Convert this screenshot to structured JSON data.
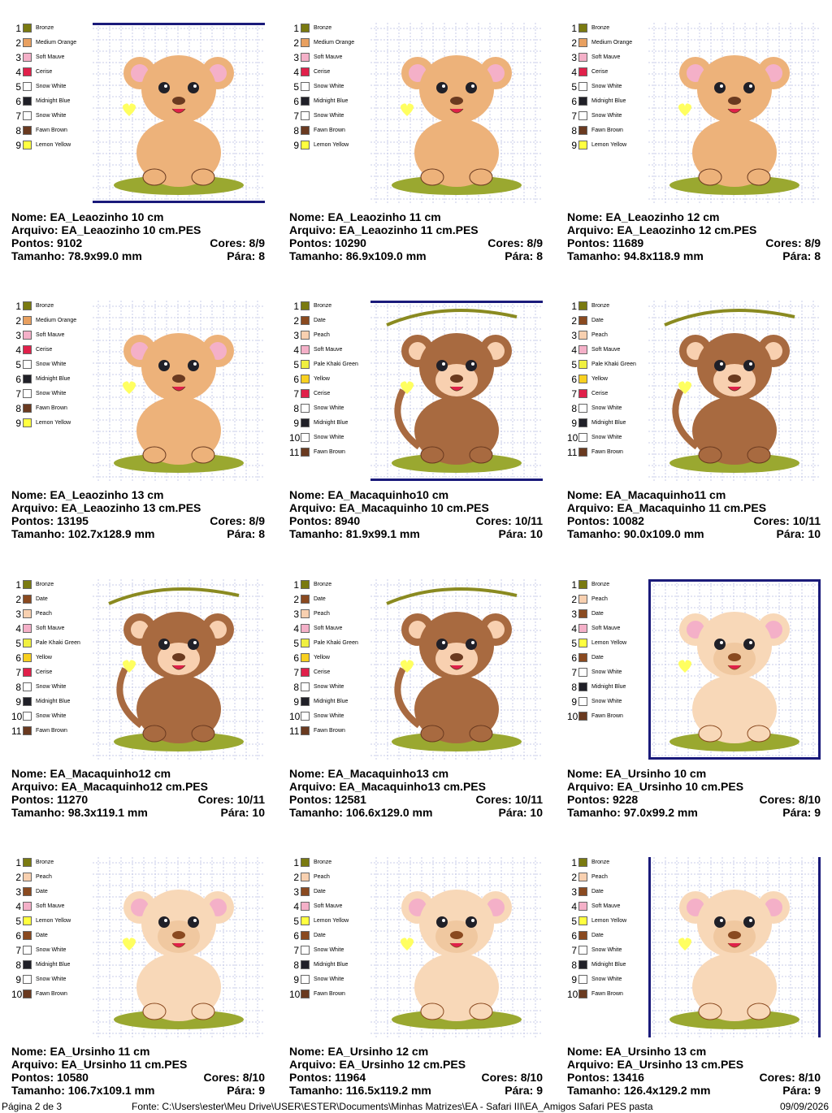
{
  "labels": {
    "nome": "Nome:",
    "arquivo": "Arquivo:",
    "pontos": "Pontos:",
    "cores": "Cores:",
    "tamanho": "Tamanho:",
    "para": "Pára:"
  },
  "cards": [
    {
      "nome": "EA_Leaozinho 10 cm",
      "arquivo": "EA_Leaozinho 10 cm.PES",
      "pontos": 9102,
      "cores": "8/9",
      "tamanho": "78.9x99.0 mm",
      "para": 8,
      "palette": [
        [
          1,
          "Bronze",
          "#7a7a10"
        ],
        [
          2,
          "Medium Orange",
          "#e8a060"
        ],
        [
          3,
          "Soft Mauve",
          "#f4b0c8"
        ],
        [
          4,
          "Cerise",
          "#e0204a"
        ],
        [
          5,
          "Snow White",
          "#ffffff"
        ],
        [
          6,
          "Midnight Blue",
          "#202028"
        ],
        [
          7,
          "Snow White",
          "#ffffff"
        ],
        [
          8,
          "Fawn Brown",
          "#6a3a20"
        ],
        [
          9,
          "Lemon Yellow",
          "#ffff40"
        ]
      ]
    },
    {
      "nome": "EA_Leaozinho 11 cm",
      "arquivo": "EA_Leaozinho 11 cm.PES",
      "pontos": 10290,
      "cores": "8/9",
      "tamanho": "86.9x109.0 mm",
      "para": 8,
      "palette": [
        [
          1,
          "Bronze",
          "#7a7a10"
        ],
        [
          2,
          "Medium Orange",
          "#e8a060"
        ],
        [
          3,
          "Soft Mauve",
          "#f4b0c8"
        ],
        [
          4,
          "Cerise",
          "#e0204a"
        ],
        [
          5,
          "Snow White",
          "#ffffff"
        ],
        [
          6,
          "Midnight Blue",
          "#202028"
        ],
        [
          7,
          "Snow White",
          "#ffffff"
        ],
        [
          8,
          "Fawn Brown",
          "#6a3a20"
        ],
        [
          9,
          "Lemon Yellow",
          "#ffff40"
        ]
      ]
    },
    {
      "nome": "EA_Leaozinho 12 cm",
      "arquivo": "EA_Leaozinho 12 cm.PES",
      "pontos": 11689,
      "cores": "8/9",
      "tamanho": "94.8x118.9 mm",
      "para": 8,
      "palette": [
        [
          1,
          "Bronze",
          "#7a7a10"
        ],
        [
          2,
          "Medium Orange",
          "#e8a060"
        ],
        [
          3,
          "Soft Mauve",
          "#f4b0c8"
        ],
        [
          4,
          "Cerise",
          "#e0204a"
        ],
        [
          5,
          "Snow White",
          "#ffffff"
        ],
        [
          6,
          "Midnight Blue",
          "#202028"
        ],
        [
          7,
          "Snow White",
          "#ffffff"
        ],
        [
          8,
          "Fawn Brown",
          "#6a3a20"
        ],
        [
          9,
          "Lemon Yellow",
          "#ffff40"
        ]
      ]
    },
    {
      "nome": "EA_Leaozinho 13 cm",
      "arquivo": "EA_Leaozinho 13 cm.PES",
      "pontos": 13195,
      "cores": "8/9",
      "tamanho": "102.7x128.9 mm",
      "para": 8,
      "palette": [
        [
          1,
          "Bronze",
          "#7a7a10"
        ],
        [
          2,
          "Medium Orange",
          "#e8a060"
        ],
        [
          3,
          "Soft Mauve",
          "#f4b0c8"
        ],
        [
          4,
          "Cerise",
          "#e0204a"
        ],
        [
          5,
          "Snow White",
          "#ffffff"
        ],
        [
          6,
          "Midnight Blue",
          "#202028"
        ],
        [
          7,
          "Snow White",
          "#ffffff"
        ],
        [
          8,
          "Fawn Brown",
          "#6a3a20"
        ],
        [
          9,
          "Lemon Yellow",
          "#ffff40"
        ]
      ]
    },
    {
      "nome": "EA_Macaquinho10 cm",
      "arquivo": "EA_Macaquinho 10 cm.PES",
      "pontos": 8940,
      "cores": "10/11",
      "tamanho": "81.9x99.1 mm",
      "para": 10,
      "palette": [
        [
          1,
          "Bronze",
          "#7a7a10"
        ],
        [
          2,
          "Date",
          "#8a4a20"
        ],
        [
          3,
          "Peach",
          "#f8d0b0"
        ],
        [
          4,
          "Soft Mauve",
          "#f4b0c8"
        ],
        [
          5,
          "Pale Khaki Green",
          "#f0f040"
        ],
        [
          6,
          "Yellow",
          "#f8d020"
        ],
        [
          7,
          "Cerise",
          "#e0204a"
        ],
        [
          8,
          "Snow White",
          "#ffffff"
        ],
        [
          9,
          "Midnight Blue",
          "#202028"
        ],
        [
          10,
          "Snow White",
          "#ffffff"
        ],
        [
          11,
          "Fawn Brown",
          "#6a3a20"
        ]
      ]
    },
    {
      "nome": "EA_Macaquinho11 cm",
      "arquivo": "EA_Macaquinho 11 cm.PES",
      "pontos": 10082,
      "cores": "10/11",
      "tamanho": "90.0x109.0 mm",
      "para": 10,
      "palette": [
        [
          1,
          "Bronze",
          "#7a7a10"
        ],
        [
          2,
          "Date",
          "#8a4a20"
        ],
        [
          3,
          "Peach",
          "#f8d0b0"
        ],
        [
          4,
          "Soft Mauve",
          "#f4b0c8"
        ],
        [
          5,
          "Pale Khaki Green",
          "#f0f040"
        ],
        [
          6,
          "Yellow",
          "#f8d020"
        ],
        [
          7,
          "Cerise",
          "#e0204a"
        ],
        [
          8,
          "Snow White",
          "#ffffff"
        ],
        [
          9,
          "Midnight Blue",
          "#202028"
        ],
        [
          10,
          "Snow White",
          "#ffffff"
        ],
        [
          11,
          "Fawn Brown",
          "#6a3a20"
        ]
      ]
    },
    {
      "nome": "EA_Macaquinho12 cm",
      "arquivo": "EA_Macaquinho12 cm.PES",
      "pontos": 11270,
      "cores": "10/11",
      "tamanho": "98.3x119.1 mm",
      "para": 10,
      "palette": [
        [
          1,
          "Bronze",
          "#7a7a10"
        ],
        [
          2,
          "Date",
          "#8a4a20"
        ],
        [
          3,
          "Peach",
          "#f8d0b0"
        ],
        [
          4,
          "Soft Mauve",
          "#f4b0c8"
        ],
        [
          5,
          "Pale Khaki Green",
          "#f0f040"
        ],
        [
          6,
          "Yellow",
          "#f8d020"
        ],
        [
          7,
          "Cerise",
          "#e0204a"
        ],
        [
          8,
          "Snow White",
          "#ffffff"
        ],
        [
          9,
          "Midnight Blue",
          "#202028"
        ],
        [
          10,
          "Snow White",
          "#ffffff"
        ],
        [
          11,
          "Fawn Brown",
          "#6a3a20"
        ]
      ]
    },
    {
      "nome": "EA_Macaquinho13 cm",
      "arquivo": "EA_Macaquinho13 cm.PES",
      "pontos": 12581,
      "cores": "10/11",
      "tamanho": "106.6x129.0 mm",
      "para": 10,
      "palette": [
        [
          1,
          "Bronze",
          "#7a7a10"
        ],
        [
          2,
          "Date",
          "#8a4a20"
        ],
        [
          3,
          "Peach",
          "#f8d0b0"
        ],
        [
          4,
          "Soft Mauve",
          "#f4b0c8"
        ],
        [
          5,
          "Pale Khaki Green",
          "#f0f040"
        ],
        [
          6,
          "Yellow",
          "#f8d020"
        ],
        [
          7,
          "Cerise",
          "#e0204a"
        ],
        [
          8,
          "Snow White",
          "#ffffff"
        ],
        [
          9,
          "Midnight Blue",
          "#202028"
        ],
        [
          10,
          "Snow White",
          "#ffffff"
        ],
        [
          11,
          "Fawn Brown",
          "#6a3a20"
        ]
      ]
    },
    {
      "nome": "EA_Ursinho 10 cm",
      "arquivo": "EA_Ursinho 10 cm.PES",
      "pontos": 9228,
      "cores": "8/10",
      "tamanho": "97.0x99.2 mm",
      "para": 9,
      "palette": [
        [
          1,
          "Bronze",
          "#7a7a10"
        ],
        [
          2,
          "Peach",
          "#f8d0b0"
        ],
        [
          3,
          "Date",
          "#8a4a20"
        ],
        [
          4,
          "Soft Mauve",
          "#f4b0c8"
        ],
        [
          5,
          "Lemon Yellow",
          "#ffff40"
        ],
        [
          6,
          "Date",
          "#8a4a20"
        ],
        [
          7,
          "Snow White",
          "#ffffff"
        ],
        [
          8,
          "Midnight Blue",
          "#202028"
        ],
        [
          9,
          "Snow White",
          "#ffffff"
        ],
        [
          10,
          "Fawn Brown",
          "#6a3a20"
        ]
      ]
    },
    {
      "nome": "EA_Ursinho 11 cm",
      "arquivo": "EA_Ursinho 11 cm.PES",
      "pontos": 10580,
      "cores": "8/10",
      "tamanho": "106.7x109.1 mm",
      "para": 9,
      "palette": [
        [
          1,
          "Bronze",
          "#7a7a10"
        ],
        [
          2,
          "Peach",
          "#f8d0b0"
        ],
        [
          3,
          "Date",
          "#8a4a20"
        ],
        [
          4,
          "Soft Mauve",
          "#f4b0c8"
        ],
        [
          5,
          "Lemon Yellow",
          "#ffff40"
        ],
        [
          6,
          "Date",
          "#8a4a20"
        ],
        [
          7,
          "Snow White",
          "#ffffff"
        ],
        [
          8,
          "Midnight Blue",
          "#202028"
        ],
        [
          9,
          "Snow White",
          "#ffffff"
        ],
        [
          10,
          "Fawn Brown",
          "#6a3a20"
        ]
      ]
    },
    {
      "nome": "EA_Ursinho 12 cm",
      "arquivo": "EA_Ursinho 12 cm.PES",
      "pontos": 11964,
      "cores": "8/10",
      "tamanho": "116.5x119.2 mm",
      "para": 9,
      "palette": [
        [
          1,
          "Bronze",
          "#7a7a10"
        ],
        [
          2,
          "Peach",
          "#f8d0b0"
        ],
        [
          3,
          "Date",
          "#8a4a20"
        ],
        [
          4,
          "Soft Mauve",
          "#f4b0c8"
        ],
        [
          5,
          "Lemon Yellow",
          "#ffff40"
        ],
        [
          6,
          "Date",
          "#8a4a20"
        ],
        [
          7,
          "Snow White",
          "#ffffff"
        ],
        [
          8,
          "Midnight Blue",
          "#202028"
        ],
        [
          9,
          "Snow White",
          "#ffffff"
        ],
        [
          10,
          "Fawn Brown",
          "#6a3a20"
        ]
      ]
    },
    {
      "nome": "EA_Ursinho 13 cm",
      "arquivo": "EA_Ursinho 13 cm.PES",
      "pontos": 13416,
      "cores": "8/10",
      "tamanho": "126.4x129.2 mm",
      "para": 9,
      "palette": [
        [
          1,
          "Bronze",
          "#7a7a10"
        ],
        [
          2,
          "Peach",
          "#f8d0b0"
        ],
        [
          3,
          "Date",
          "#8a4a20"
        ],
        [
          4,
          "Soft Mauve",
          "#f4b0c8"
        ],
        [
          5,
          "Lemon Yellow",
          "#ffff40"
        ],
        [
          6,
          "Date",
          "#8a4a20"
        ],
        [
          7,
          "Snow White",
          "#ffffff"
        ],
        [
          8,
          "Midnight Blue",
          "#202028"
        ],
        [
          9,
          "Snow White",
          "#ffffff"
        ],
        [
          10,
          "Fawn Brown",
          "#6a3a20"
        ]
      ]
    }
  ],
  "footer": {
    "page": "Página 2 de 3",
    "source": "Fonte: C:\\Users\\ester\\Meu Drive\\USER\\ESTER\\Documents\\Minhas Matrizes\\EA - Safari III\\EA_Amigos Safari PES pasta",
    "date": "09/09/2026"
  }
}
